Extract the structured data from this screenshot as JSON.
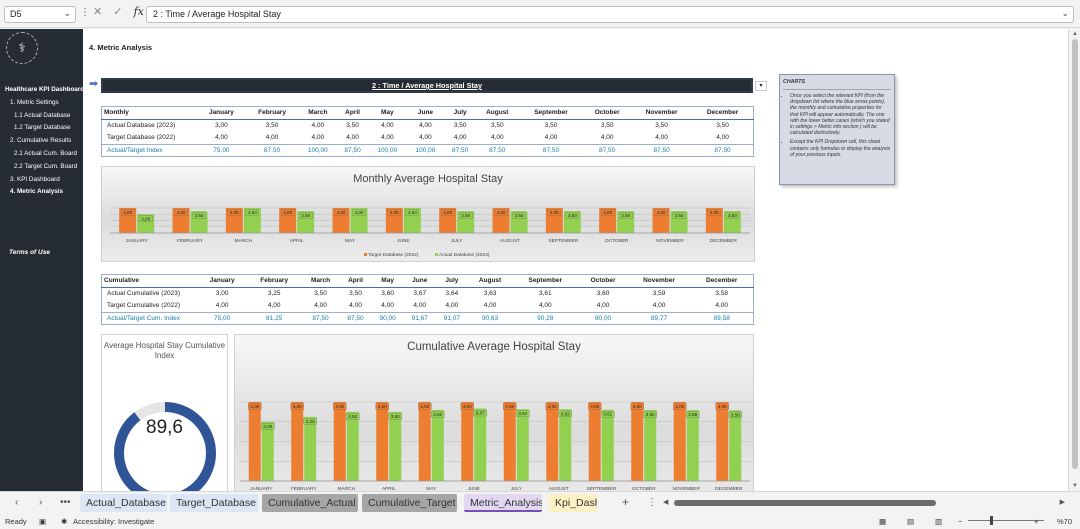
{
  "formula_bar": {
    "cell_ref": "D5",
    "formula": "2 : Time  / Average Hospital Stay",
    "fx": "fx"
  },
  "sidebar": {
    "logo": "⚕",
    "items": [
      {
        "label": "Healthcare KPI Dashboard",
        "level": "h"
      },
      {
        "label": "1. Metric Settings",
        "level": "l1"
      },
      {
        "label": "1.1 Actual Database",
        "level": "l2"
      },
      {
        "label": "1.2 Target Database",
        "level": "l2"
      },
      {
        "label": "2. Cumulative Results",
        "level": "l1"
      },
      {
        "label": "2.1 Actual Cum. Board",
        "level": "l2"
      },
      {
        "label": "2.2 Target Cum. Board",
        "level": "l2"
      },
      {
        "label": "3. KPI Dashboard",
        "level": "l1"
      },
      {
        "label": "4. Metric Analysis",
        "level": "l1 act"
      }
    ],
    "terms": "Terms of Use"
  },
  "page_title": "4. Metric Analysis",
  "kpi_dropdown": "2 : Time  / Average Hospital Stay",
  "notes": {
    "title": "CHARTS",
    "items": [
      "Once you select the relevant KPI (from the dropdown list where the blue arrow points), the monthly and cumulative properties for that KPI will appear automatically. The one with the lower better cases (which you stated in settings > Metric info section ) will be calculated distinctively.",
      "Except the KPI Dropdown cell, this sheet contains only formulas to display the analysis of your previous inputs."
    ]
  },
  "monthly_table": {
    "headers": [
      "Monthly",
      "January",
      "February",
      "March",
      "April",
      "May",
      "June",
      "July",
      "August",
      "September",
      "October",
      "November",
      "December"
    ],
    "rows": [
      {
        "label": "Actual Database (2023)",
        "cls": "",
        "values": [
          "3,00",
          "3,50",
          "4,00",
          "3,50",
          "4,00",
          "4,00",
          "3,50",
          "3,50",
          "3,50",
          "3,50",
          "3,50",
          "3,50"
        ]
      },
      {
        "label": "Target Database (2022)",
        "cls": "",
        "values": [
          "4,00",
          "4,00",
          "4,00",
          "4,00",
          "4,00",
          "4,00",
          "4,00",
          "4,00",
          "4,00",
          "4,00",
          "4,00",
          "4,00"
        ]
      },
      {
        "label": "Actual/Target Index",
        "cls": "idx",
        "values": [
          "75,00",
          "87,50",
          "100,00",
          "87,50",
          "100,00",
          "100,00",
          "87,50",
          "87,50",
          "87,50",
          "87,50",
          "87,50",
          "87,50"
        ]
      }
    ]
  },
  "cumulative_table": {
    "headers": [
      "Cumulative",
      "January",
      "February",
      "March",
      "April",
      "May",
      "June",
      "July",
      "August",
      "September",
      "October",
      "November",
      "December"
    ],
    "rows": [
      {
        "label": "Actual Cumulative (2023)",
        "cls": "",
        "values": [
          "3,00",
          "3,25",
          "3,50",
          "3,50",
          "3,60",
          "3,67",
          "3,64",
          "3,63",
          "3,61",
          "3,60",
          "3,59",
          "3,58"
        ]
      },
      {
        "label": "Target Cumulative (2022)",
        "cls": "",
        "values": [
          "4,00",
          "4,00",
          "4,00",
          "4,00",
          "4,00",
          "4,00",
          "4,00",
          "4,00",
          "4,00",
          "4,00",
          "4,00",
          "4,00"
        ]
      },
      {
        "label": "Actual/Target Cum. Index",
        "cls": "idx",
        "values": [
          "75,00",
          "81,25",
          "87,50",
          "87,50",
          "90,00",
          "91,67",
          "91,07",
          "90,63",
          "90,28",
          "90,00",
          "89,77",
          "89,58"
        ]
      }
    ]
  },
  "gauge": {
    "title": "Average Hospital Stay Cumulative Index",
    "value_label": "89,6",
    "value": 89.6,
    "max": 100,
    "color": "#2f5597",
    "track": "#e5e5e5"
  },
  "chart_data": [
    {
      "type": "bar",
      "title": "Monthly Average Hospital Stay",
      "categories": [
        "JANUARY",
        "FEBRUARY",
        "MARCH",
        "APRIL",
        "MAY",
        "JUNE",
        "JULY",
        "AUGUST",
        "SEPTEMBER",
        "OCTOBER",
        "NOVEMBER",
        "DECEMBER"
      ],
      "series": [
        {
          "name": "Target Database (2022)",
          "color": "#ed7d31",
          "values": [
            4,
            4,
            4,
            4,
            4,
            4,
            4,
            4,
            4,
            4,
            4,
            4
          ],
          "labels": [
            "4,00",
            "4,00",
            "4,00",
            "4,00",
            "4,00",
            "4,00",
            "4,00",
            "4,00",
            "4,00",
            "4,00",
            "4,00",
            "4,00"
          ]
        },
        {
          "name": "Actual Database (2023)",
          "color": "#92d050",
          "values": [
            3,
            3.5,
            4,
            3.5,
            4,
            4,
            3.5,
            3.5,
            3.5,
            3.5,
            3.5,
            3.5
          ],
          "labels": [
            "3,00",
            "3,50",
            "4,00",
            "3,50",
            "4,00",
            "4,00",
            "3,50",
            "3,50",
            "3,50",
            "3,50",
            "3,50",
            "3,50"
          ]
        }
      ],
      "ylim": [
        0,
        4
      ],
      "legend": "bottom",
      "grid": true
    },
    {
      "type": "bar",
      "title": "Cumulative Average Hospital Stay",
      "categories": [
        "JANUARY",
        "FEBRUARY",
        "MARCH",
        "APRIL",
        "MAY",
        "JUNE",
        "JULY",
        "AUGUST",
        "SEPTEMBER",
        "OCTOBER",
        "NOVEMBER",
        "DECEMBER"
      ],
      "series": [
        {
          "name": "Target Cumulative (2022)",
          "color": "#ed7d31",
          "values": [
            4,
            4,
            4,
            4,
            4,
            4,
            4,
            4,
            4,
            4,
            4,
            4
          ],
          "labels": [
            "4,00",
            "4,00",
            "4,00",
            "4,00",
            "4,00",
            "4,00",
            "4,00",
            "4,00",
            "4,00",
            "4,00",
            "4,00",
            "4,00"
          ]
        },
        {
          "name": "Actual Cumulative (2023)",
          "color": "#92d050",
          "values": [
            3,
            3.25,
            3.5,
            3.5,
            3.6,
            3.67,
            3.64,
            3.63,
            3.61,
            3.6,
            3.59,
            3.58
          ],
          "labels": [
            "3,00",
            "3,25",
            "3,50",
            "3,50",
            "3,60",
            "3,67",
            "3,64",
            "3,63",
            "3,61",
            "3,60",
            "3,59",
            "3,58"
          ]
        }
      ],
      "ylim": [
        0,
        4
      ],
      "legend": "bottom",
      "grid": true
    }
  ],
  "tabs": [
    {
      "label": "Actual_Database",
      "bg": "#dde6f4",
      "active": false
    },
    {
      "label": "Target_Database",
      "bg": "#dde6f4",
      "active": false
    },
    {
      "label": "Cumulative_Actual",
      "bg": "#a6a6a6",
      "active": false
    },
    {
      "label": "Cumulative_Target",
      "bg": "#a6a6a6",
      "active": false
    },
    {
      "label": "Metric_Analysis",
      "bg": "#e3d7f2",
      "active": true
    },
    {
      "label": "Kpi_Dash",
      "bg": "#fdf0c2",
      "active": false
    }
  ],
  "status": {
    "ready": "Ready",
    "accessibility": "Accessibility: Investigate",
    "zoom": "%70"
  }
}
